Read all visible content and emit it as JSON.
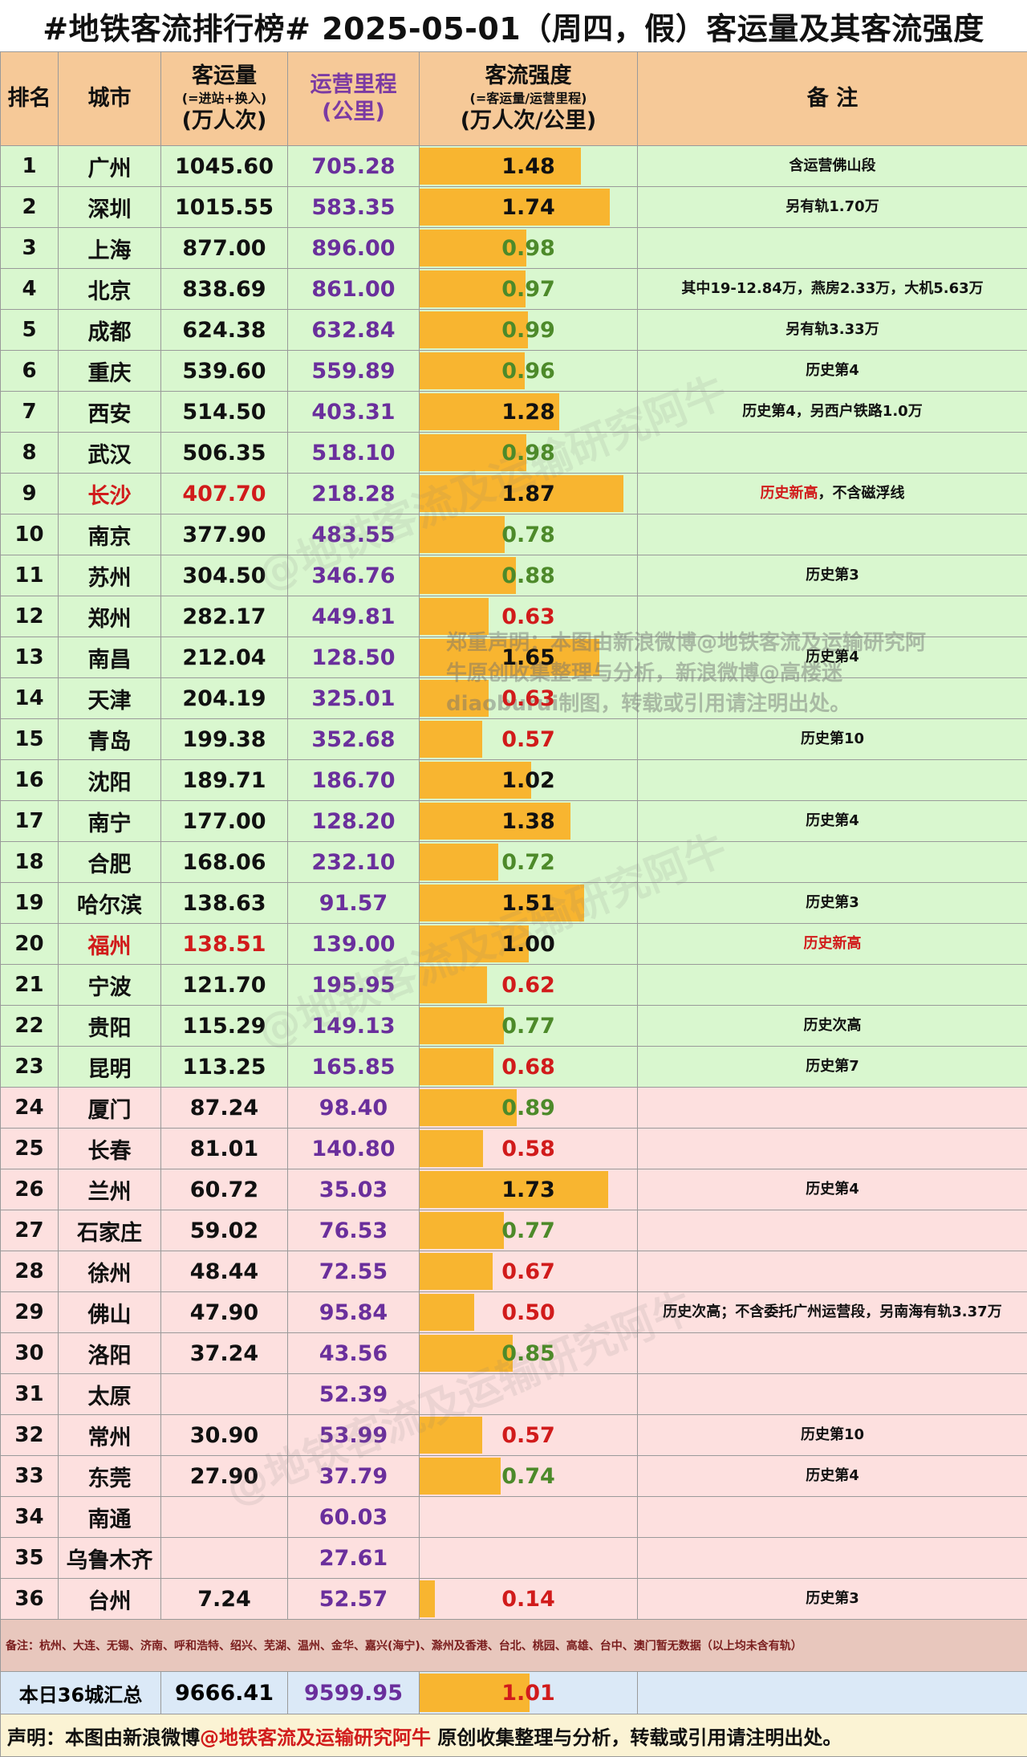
{
  "title": "#地铁客流排行榜# 2025-05-01（周四，假）客运量及其客流强度",
  "headers": {
    "rank": "排名",
    "city": "城市",
    "volume_l1": "客运量",
    "volume_l2": "(=进站+换入)",
    "volume_l3": "(万人次)",
    "mileage_l1": "运营里程",
    "mileage_l2": "(公里)",
    "intensity_l1": "客流强度",
    "intensity_l2": "(=客运量/运营里程)",
    "intensity_l3": "(万人次/公里)",
    "note": "备  注"
  },
  "colors": {
    "bar": "#f8b530",
    "green_row": "#d9f7cf",
    "pink_row": "#fde0df",
    "header": "#f6c998",
    "mileage": "#6a2f9c",
    "red": "#d11b1b",
    "olive": "#4d8a2a"
  },
  "rows": [
    {
      "rank": "1",
      "city": "广州",
      "volume": "1045.60",
      "mileage": "705.28",
      "intensity": "1.48",
      "note": "含运营佛山段"
    },
    {
      "rank": "2",
      "city": "深圳",
      "volume": "1015.55",
      "mileage": "583.35",
      "intensity": "1.74",
      "note": "另有轨1.70万"
    },
    {
      "rank": "3",
      "city": "上海",
      "volume": "877.00",
      "mileage": "896.00",
      "intensity": "0.98",
      "note": ""
    },
    {
      "rank": "4",
      "city": "北京",
      "volume": "838.69",
      "mileage": "861.00",
      "intensity": "0.97",
      "note": "其中19-12.84万，燕房2.33万，大机5.63万"
    },
    {
      "rank": "5",
      "city": "成都",
      "volume": "624.38",
      "mileage": "632.84",
      "intensity": "0.99",
      "note": "另有轨3.33万"
    },
    {
      "rank": "6",
      "city": "重庆",
      "volume": "539.60",
      "mileage": "559.89",
      "intensity": "0.96",
      "note": "历史第4"
    },
    {
      "rank": "7",
      "city": "西安",
      "volume": "514.50",
      "mileage": "403.31",
      "intensity": "1.28",
      "note": "历史第4，另西户铁路1.0万"
    },
    {
      "rank": "8",
      "city": "武汉",
      "volume": "506.35",
      "mileage": "518.10",
      "intensity": "0.98",
      "note": ""
    },
    {
      "rank": "9",
      "city": "长沙",
      "volume": "407.70",
      "mileage": "218.28",
      "intensity": "1.87",
      "note_red": "历史新高",
      "note": "，不含磁浮线"
    },
    {
      "rank": "10",
      "city": "南京",
      "volume": "377.90",
      "mileage": "483.55",
      "intensity": "0.78",
      "note": ""
    },
    {
      "rank": "11",
      "city": "苏州",
      "volume": "304.50",
      "mileage": "346.76",
      "intensity": "0.88",
      "note": "历史第3"
    },
    {
      "rank": "12",
      "city": "郑州",
      "volume": "282.17",
      "mileage": "449.81",
      "intensity": "0.63",
      "note": ""
    },
    {
      "rank": "13",
      "city": "南昌",
      "volume": "212.04",
      "mileage": "128.50",
      "intensity": "1.65",
      "note": "历史第4"
    },
    {
      "rank": "14",
      "city": "天津",
      "volume": "204.19",
      "mileage": "325.01",
      "intensity": "0.63",
      "note": ""
    },
    {
      "rank": "15",
      "city": "青岛",
      "volume": "199.38",
      "mileage": "352.68",
      "intensity": "0.57",
      "note": "历史第10"
    },
    {
      "rank": "16",
      "city": "沈阳",
      "volume": "189.71",
      "mileage": "186.70",
      "intensity": "1.02",
      "note": ""
    },
    {
      "rank": "17",
      "city": "南宁",
      "volume": "177.00",
      "mileage": "128.20",
      "intensity": "1.38",
      "note": "历史第4"
    },
    {
      "rank": "18",
      "city": "合肥",
      "volume": "168.06",
      "mileage": "232.10",
      "intensity": "0.72",
      "note": ""
    },
    {
      "rank": "19",
      "city": "哈尔滨",
      "volume": "138.63",
      "mileage": "91.57",
      "intensity": "1.51",
      "note": "历史第3"
    },
    {
      "rank": "20",
      "city": "福州",
      "volume": "138.51",
      "mileage": "139.00",
      "intensity": "1.00",
      "note_red": "历史新高",
      "note": ""
    },
    {
      "rank": "21",
      "city": "宁波",
      "volume": "121.70",
      "mileage": "195.95",
      "intensity": "0.62",
      "note": ""
    },
    {
      "rank": "22",
      "city": "贵阳",
      "volume": "115.29",
      "mileage": "149.13",
      "intensity": "0.77",
      "note": "历史次高"
    },
    {
      "rank": "23",
      "city": "昆明",
      "volume": "113.25",
      "mileage": "165.85",
      "intensity": "0.68",
      "note": "历史第7"
    },
    {
      "rank": "24",
      "city": "厦门",
      "volume": "87.24",
      "mileage": "98.40",
      "intensity": "0.89",
      "note": ""
    },
    {
      "rank": "25",
      "city": "长春",
      "volume": "81.01",
      "mileage": "140.80",
      "intensity": "0.58",
      "note": ""
    },
    {
      "rank": "26",
      "city": "兰州",
      "volume": "60.72",
      "mileage": "35.03",
      "intensity": "1.73",
      "note": "历史第4"
    },
    {
      "rank": "27",
      "city": "石家庄",
      "volume": "59.02",
      "mileage": "76.53",
      "intensity": "0.77",
      "note": ""
    },
    {
      "rank": "28",
      "city": "徐州",
      "volume": "48.44",
      "mileage": "72.55",
      "intensity": "0.67",
      "note": ""
    },
    {
      "rank": "29",
      "city": "佛山",
      "volume": "47.90",
      "mileage": "95.84",
      "intensity": "0.50",
      "note": "历史次高；不含委托广州运营段，另南海有轨3.37万"
    },
    {
      "rank": "30",
      "city": "洛阳",
      "volume": "37.24",
      "mileage": "43.56",
      "intensity": "0.85",
      "note": ""
    },
    {
      "rank": "31",
      "city": "太原",
      "volume": "",
      "mileage": "52.39",
      "intensity": "",
      "note": ""
    },
    {
      "rank": "32",
      "city": "常州",
      "volume": "30.90",
      "mileage": "53.99",
      "intensity": "0.57",
      "note": "历史第10"
    },
    {
      "rank": "33",
      "city": "东莞",
      "volume": "27.90",
      "mileage": "37.79",
      "intensity": "0.74",
      "note": "历史第4"
    },
    {
      "rank": "34",
      "city": "南通",
      "volume": "",
      "mileage": "60.03",
      "intensity": "",
      "note": ""
    },
    {
      "rank": "35",
      "city": "乌鲁木齐",
      "volume": "",
      "mileage": "27.61",
      "intensity": "",
      "note": ""
    },
    {
      "rank": "36",
      "city": "台州",
      "volume": "7.24",
      "mileage": "52.57",
      "intensity": "0.14",
      "note": "历史第3"
    }
  ],
  "footnote": "备注：杭州、大连、无锡、济南、呼和浩特、绍兴、芜湖、温州、金华、嘉兴(海宁)、滁州及香港、台北、桃园、高雄、台中、澳门暂无数据（以上均未含有轨）",
  "summary": {
    "label": "本日36城汇总",
    "volume": "9666.41",
    "mileage": "9599.95",
    "intensity": "1.01"
  },
  "declaration": {
    "prefix": "声明：本图由新浪微博",
    "link": "@地铁客流及运输研究阿牛",
    "suffix": " 原创收集整理与分析，转载或引用请注明出处。"
  },
  "watermark": "@地铁客流及运输研究阿牛",
  "copyright_text": "郑重声明：本图由新浪微博@地铁客流及运输研究阿牛原创收集整理与分析，新浪微博@高楼迷diaoburui制图，转载或引用请注明出处。"
}
